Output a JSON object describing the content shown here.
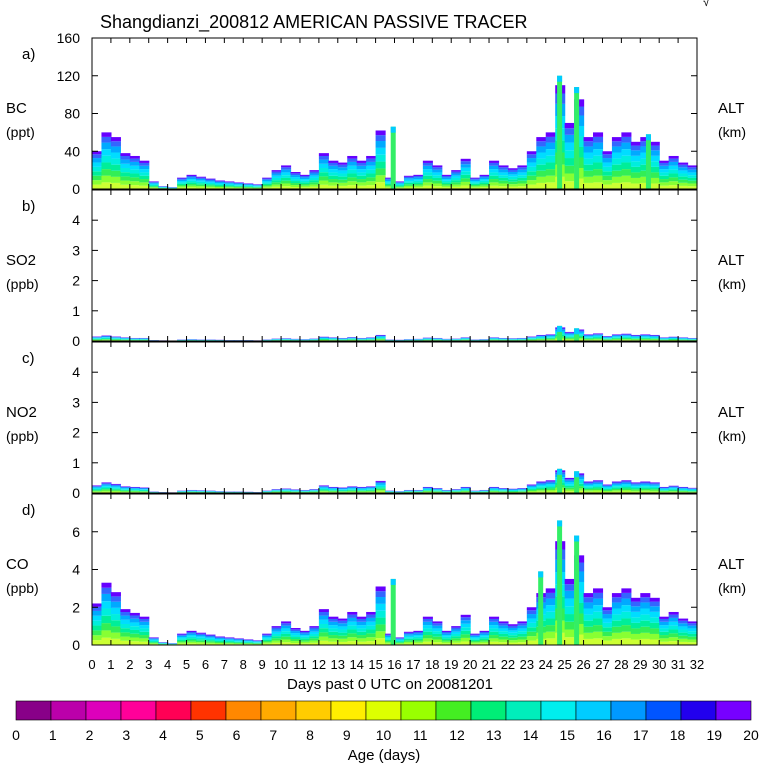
{
  "chart_data": {
    "type": "area",
    "title": "Shangdianzi_200812 AMERICAN PASSIVE TRACER",
    "xlabel": "Days past 0 UTC on 20081201",
    "xlim": [
      0,
      32
    ],
    "x_ticks": [
      "0",
      "1",
      "2",
      "3",
      "4",
      "5",
      "6",
      "7",
      "8",
      "9",
      "10",
      "11",
      "12",
      "13",
      "14",
      "15",
      "16",
      "17",
      "18",
      "19",
      "20",
      "21",
      "22",
      "23",
      "24",
      "25",
      "26",
      "27",
      "28",
      "29",
      "30",
      "31",
      "32"
    ],
    "days": [
      0,
      0.5,
      1,
      1.5,
      2,
      2.5,
      3,
      3.5,
      4,
      4.5,
      5,
      5.5,
      6,
      6.5,
      7,
      7.5,
      8,
      8.5,
      9,
      9.5,
      10,
      10.5,
      11,
      11.5,
      12,
      12.5,
      13,
      13.5,
      14,
      14.5,
      15,
      15.5,
      16,
      16.5,
      17,
      17.5,
      18,
      18.5,
      19,
      19.5,
      20,
      20.5,
      21,
      21.5,
      22,
      22.5,
      23,
      23.5,
      24,
      24.5,
      25,
      25.5,
      26,
      26.5,
      27,
      27.5,
      28,
      28.5,
      29,
      29.5,
      30,
      30.5,
      31,
      31.5
    ],
    "panels": [
      {
        "letter": "a)",
        "species": "BC",
        "units": "(ppt)",
        "right_label": "ALT",
        "right_units": "(km)",
        "ylim": [
          0,
          160
        ],
        "yticks": [
          "0",
          "40",
          "80",
          "120",
          "160"
        ],
        "values": [
          40,
          60,
          55,
          38,
          35,
          30,
          8,
          3,
          2,
          12,
          15,
          13,
          11,
          9,
          8,
          7,
          6,
          5,
          12,
          20,
          25,
          18,
          15,
          20,
          38,
          30,
          28,
          35,
          30,
          35,
          62,
          12,
          8,
          14,
          15,
          30,
          25,
          15,
          20,
          32,
          12,
          15,
          30,
          25,
          22,
          25,
          40,
          55,
          60,
          110,
          70,
          95,
          55,
          60,
          40,
          55,
          60,
          50,
          55,
          50,
          30,
          35,
          28,
          25
        ],
        "spikes": [
          [
            24.6,
            120
          ],
          [
            25.5,
            108
          ],
          [
            15.8,
            66
          ],
          [
            29.3,
            58
          ]
        ]
      },
      {
        "letter": "b)",
        "species": "SO2",
        "units": "(ppb)",
        "right_label": "ALT",
        "right_units": "(km)",
        "ylim": [
          0,
          5
        ],
        "yticks": [
          "0",
          "1",
          "2",
          "3",
          "4"
        ],
        "values": [
          0.15,
          0.18,
          0.15,
          0.12,
          0.1,
          0.1,
          0.03,
          0.02,
          0.01,
          0.05,
          0.06,
          0.05,
          0.05,
          0.04,
          0.03,
          0.03,
          0.03,
          0.02,
          0.05,
          0.08,
          0.09,
          0.07,
          0.06,
          0.08,
          0.14,
          0.12,
          0.1,
          0.13,
          0.1,
          0.12,
          0.2,
          0.05,
          0.04,
          0.06,
          0.07,
          0.11,
          0.1,
          0.07,
          0.08,
          0.12,
          0.05,
          0.06,
          0.12,
          0.1,
          0.09,
          0.1,
          0.15,
          0.2,
          0.22,
          0.45,
          0.3,
          0.38,
          0.22,
          0.25,
          0.16,
          0.22,
          0.24,
          0.2,
          0.22,
          0.2,
          0.12,
          0.14,
          0.12,
          0.1
        ],
        "spikes": [
          [
            24.6,
            0.5
          ],
          [
            25.5,
            0.42
          ]
        ]
      },
      {
        "letter": "c)",
        "species": "NO2",
        "units": "(ppb)",
        "right_label": "ALT",
        "right_units": "(km)",
        "ylim": [
          0,
          5
        ],
        "yticks": [
          "0",
          "1",
          "2",
          "3",
          "4"
        ],
        "values": [
          0.25,
          0.35,
          0.3,
          0.22,
          0.2,
          0.18,
          0.05,
          0.03,
          0.02,
          0.08,
          0.1,
          0.09,
          0.08,
          0.06,
          0.05,
          0.05,
          0.04,
          0.03,
          0.08,
          0.13,
          0.15,
          0.12,
          0.1,
          0.13,
          0.25,
          0.2,
          0.18,
          0.22,
          0.2,
          0.22,
          0.4,
          0.08,
          0.06,
          0.1,
          0.1,
          0.2,
          0.16,
          0.1,
          0.13,
          0.2,
          0.08,
          0.1,
          0.2,
          0.16,
          0.14,
          0.16,
          0.28,
          0.38,
          0.42,
          0.75,
          0.5,
          0.65,
          0.38,
          0.42,
          0.28,
          0.38,
          0.42,
          0.35,
          0.38,
          0.35,
          0.2,
          0.24,
          0.2,
          0.17
        ],
        "spikes": [
          [
            24.6,
            0.8
          ],
          [
            25.5,
            0.72
          ]
        ]
      },
      {
        "letter": "d)",
        "species": "CO",
        "units": "(ppb)",
        "right_label": "ALT",
        "right_units": "(km)",
        "ylim": [
          0,
          8
        ],
        "yticks": [
          "0",
          "2",
          "4",
          "6"
        ],
        "values": [
          2.2,
          3.3,
          2.8,
          1.9,
          1.7,
          1.5,
          0.4,
          0.15,
          0.1,
          0.6,
          0.75,
          0.65,
          0.55,
          0.45,
          0.4,
          0.35,
          0.3,
          0.25,
          0.6,
          1,
          1.25,
          0.9,
          0.75,
          1,
          1.9,
          1.5,
          1.4,
          1.75,
          1.5,
          1.75,
          3.1,
          0.6,
          0.4,
          0.7,
          0.75,
          1.5,
          1.25,
          0.75,
          1,
          1.6,
          0.6,
          0.75,
          1.5,
          1.25,
          1.1,
          1.25,
          2,
          2.75,
          3,
          5.5,
          3.5,
          4.75,
          2.75,
          3,
          2,
          2.75,
          3,
          2.5,
          2.75,
          2.5,
          1.5,
          1.75,
          1.4,
          1.25
        ],
        "spikes": [
          [
            24.6,
            6.6
          ],
          [
            25.5,
            5.8
          ],
          [
            15.8,
            3.5
          ],
          [
            23.6,
            3.9
          ]
        ]
      }
    ],
    "colorbar": {
      "label": "Age (days)",
      "ticks": [
        "0",
        "1",
        "2",
        "3",
        "4",
        "5",
        "6",
        "7",
        "8",
        "9",
        "10",
        "11",
        "12",
        "13",
        "14",
        "15",
        "16",
        "17",
        "18",
        "19",
        "20"
      ],
      "colors": [
        "#880088",
        "#bb00aa",
        "#dd00bb",
        "#ff0099",
        "#ff0055",
        "#ff3300",
        "#ff8800",
        "#ffaa00",
        "#ffcc00",
        "#ffee00",
        "#ddff00",
        "#99ff00",
        "#44ee22",
        "#00ee77",
        "#00eebb",
        "#00eeee",
        "#00ccff",
        "#0099ff",
        "#0055ff",
        "#2200ee",
        "#7700ff"
      ]
    },
    "layer_colors": [
      "#ccff33",
      "#88ff33",
      "#33ee55",
      "#00ee99",
      "#00eedd",
      "#00ddff",
      "#00aaff",
      "#3366ff",
      "#6600ff"
    ],
    "corner_mark": "√"
  }
}
